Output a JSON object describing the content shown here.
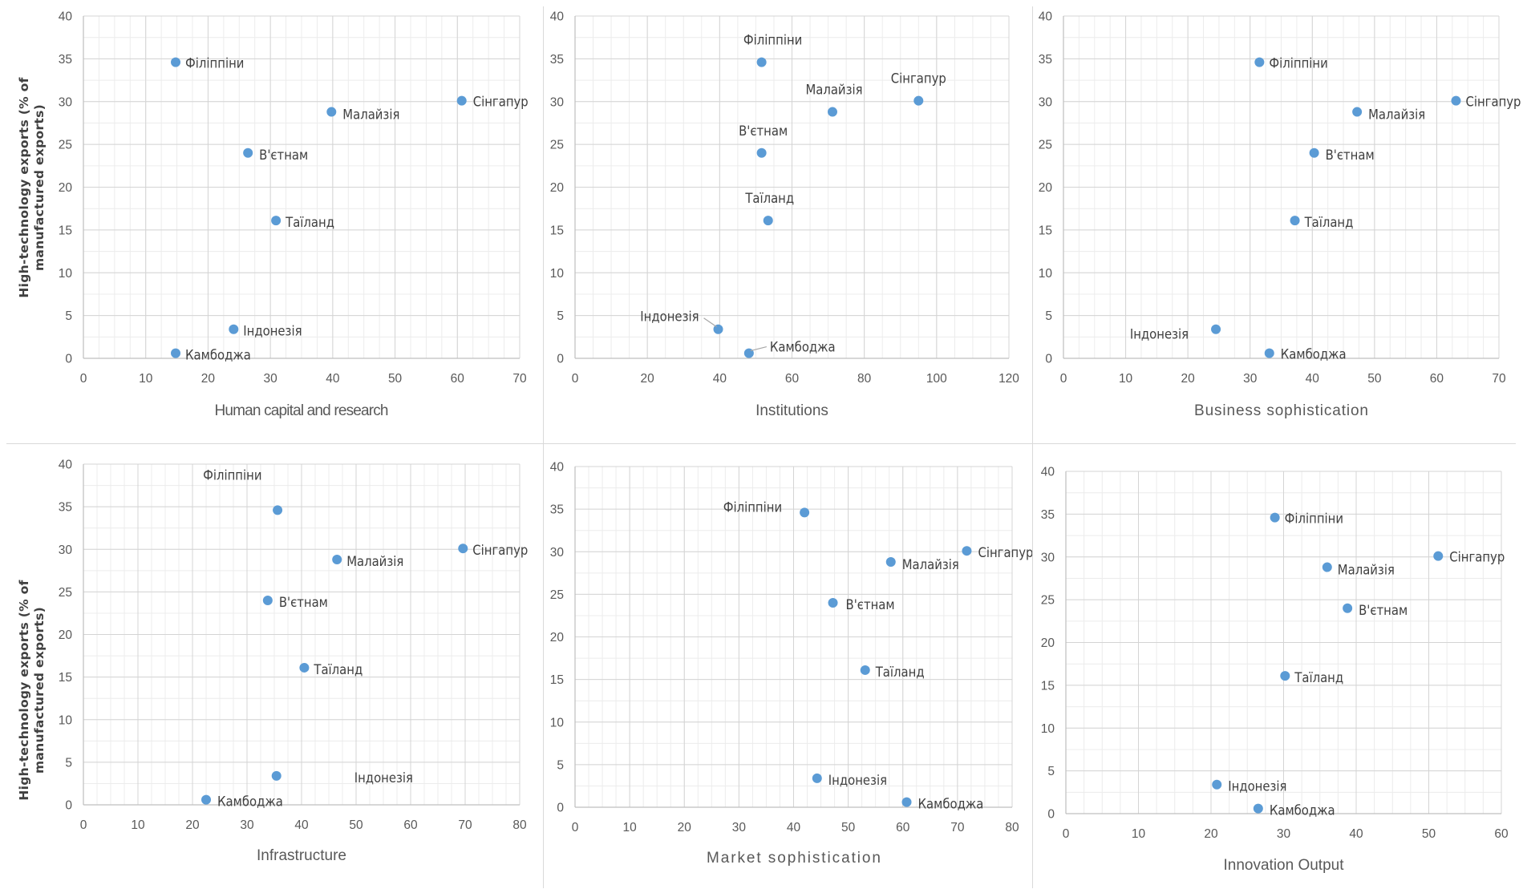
{
  "y_axis_title": [
    "High-technology exports (% of",
    "manufactured exports)"
  ],
  "chart_data": [
    {
      "type": "scatter",
      "xlabel": "Human capital and research",
      "ylabel": "High-technology exports (% of manufactured exports)",
      "xlim": [
        0,
        70
      ],
      "xstep": 10,
      "ylim": [
        0,
        40
      ],
      "ystep": 5,
      "grid": true,
      "marker_color": "#5b9bd5",
      "points": [
        {
          "label": "Філіппіни",
          "x": 14.8,
          "y": 34.6
        },
        {
          "label": "Сінгапур",
          "x": 60.7,
          "y": 30.1
        },
        {
          "label": "Малайзія",
          "x": 39.8,
          "y": 28.8
        },
        {
          "label": "В'єтнам",
          "x": 26.4,
          "y": 24.0
        },
        {
          "label": "Таїланд",
          "x": 30.9,
          "y": 16.1
        },
        {
          "label": "Індонезія",
          "x": 24.1,
          "y": 3.4
        },
        {
          "label": "Камбоджа",
          "x": 14.8,
          "y": 0.6
        }
      ]
    },
    {
      "type": "scatter",
      "xlabel": "Institutions",
      "ylabel": "",
      "xlim": [
        0,
        120
      ],
      "xstep": 20,
      "ylim": [
        0,
        40
      ],
      "ystep": 5,
      "grid": true,
      "marker_color": "#5b9bd5",
      "points": [
        {
          "label": "Філіппіни",
          "x": 51.6,
          "y": 34.6
        },
        {
          "label": "Сінгапур",
          "x": 95.0,
          "y": 30.1
        },
        {
          "label": "Малайзія",
          "x": 71.2,
          "y": 28.8
        },
        {
          "label": "В'єтнам",
          "x": 51.6,
          "y": 24.0
        },
        {
          "label": "Таїланд",
          "x": 53.4,
          "y": 16.1
        },
        {
          "label": "Індонезія",
          "x": 39.6,
          "y": 3.4
        },
        {
          "label": "Камбоджа",
          "x": 48.1,
          "y": 0.6
        }
      ]
    },
    {
      "type": "scatter",
      "xlabel": "Business sophistication",
      "ylabel": "",
      "xlim": [
        0,
        70
      ],
      "xstep": 10,
      "ylim": [
        0,
        40
      ],
      "ystep": 5,
      "grid": true,
      "marker_color": "#5b9bd5",
      "points": [
        {
          "label": "Філіппіни",
          "x": 31.5,
          "y": 34.6
        },
        {
          "label": "Сінгапур",
          "x": 63.1,
          "y": 30.1
        },
        {
          "label": "Малайзія",
          "x": 47.2,
          "y": 28.8
        },
        {
          "label": "В'єтнам",
          "x": 40.3,
          "y": 24.0
        },
        {
          "label": "Таїланд",
          "x": 37.2,
          "y": 16.1
        },
        {
          "label": "Індонезія",
          "x": 24.5,
          "y": 3.4
        },
        {
          "label": "Камбоджа",
          "x": 33.1,
          "y": 0.6
        }
      ]
    },
    {
      "type": "scatter",
      "xlabel": "Infrastructure",
      "ylabel": "High-technology exports (% of manufactured exports)",
      "xlim": [
        0,
        80
      ],
      "xstep": 10,
      "ylim": [
        0,
        40
      ],
      "ystep": 5,
      "grid": true,
      "marker_color": "#5b9bd5",
      "points": [
        {
          "label": "Філіппіни",
          "x": 35.6,
          "y": 34.6
        },
        {
          "label": "Сінгапур",
          "x": 69.6,
          "y": 30.1
        },
        {
          "label": "Малайзія",
          "x": 46.5,
          "y": 28.8
        },
        {
          "label": "В'єтнам",
          "x": 33.8,
          "y": 24.0
        },
        {
          "label": "Таїланд",
          "x": 40.5,
          "y": 16.1
        },
        {
          "label": "Індонезія",
          "x": 35.4,
          "y": 3.4
        },
        {
          "label": "Камбоджа",
          "x": 22.5,
          "y": 0.6
        }
      ]
    },
    {
      "type": "scatter",
      "xlabel": "Market sophistication",
      "ylabel": "",
      "xlim": [
        0,
        80
      ],
      "xstep": 10,
      "ylim": [
        0,
        40
      ],
      "ystep": 5,
      "grid": true,
      "marker_color": "#5b9bd5",
      "points": [
        {
          "label": "Філіппіни",
          "x": 42.0,
          "y": 34.6
        },
        {
          "label": "Сінгапур",
          "x": 71.7,
          "y": 30.1
        },
        {
          "label": "Малайзія",
          "x": 57.8,
          "y": 28.8
        },
        {
          "label": "В'єтнам",
          "x": 47.2,
          "y": 24.0
        },
        {
          "label": "Таїланд",
          "x": 53.1,
          "y": 16.1
        },
        {
          "label": "Індонезія",
          "x": 44.3,
          "y": 3.4
        },
        {
          "label": "Камбоджа",
          "x": 60.7,
          "y": 0.6
        }
      ]
    },
    {
      "type": "scatter",
      "xlabel": "Innovation Output",
      "ylabel": "",
      "xlim": [
        0,
        60
      ],
      "xstep": 10,
      "ylim": [
        0,
        40
      ],
      "ystep": 5,
      "grid": true,
      "marker_color": "#5b9bd5",
      "points": [
        {
          "label": "Філіппіни",
          "x": 28.8,
          "y": 34.6
        },
        {
          "label": "Сінгапур",
          "x": 51.3,
          "y": 30.1
        },
        {
          "label": "Малайзія",
          "x": 36.0,
          "y": 28.8
        },
        {
          "label": "В'єтнам",
          "x": 38.8,
          "y": 24.0
        },
        {
          "label": "Таїланд",
          "x": 30.2,
          "y": 16.1
        },
        {
          "label": "Індонезія",
          "x": 20.8,
          "y": 3.4
        },
        {
          "label": "Камбоджа",
          "x": 26.5,
          "y": 0.6
        }
      ]
    }
  ]
}
